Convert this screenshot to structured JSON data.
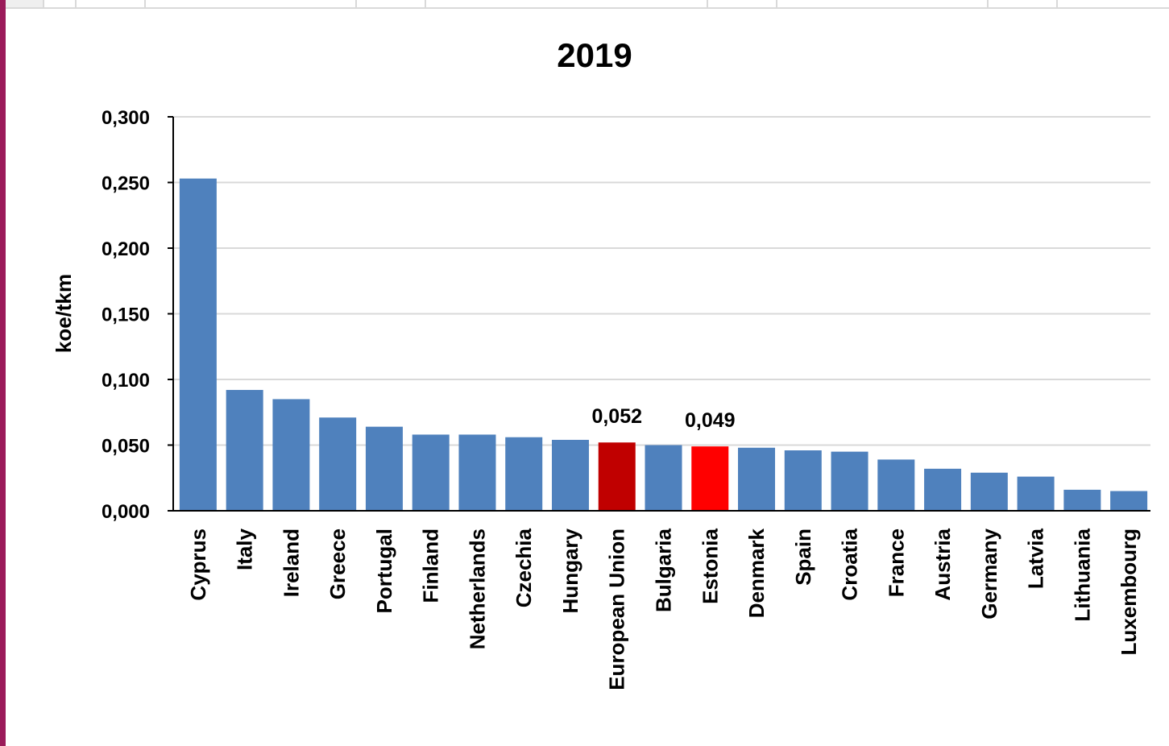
{
  "chart_data": {
    "type": "bar",
    "title": "2019",
    "xlabel": "",
    "ylabel": "koe/tkm",
    "ylim": [
      0,
      0.3
    ],
    "yticks": [
      "0,000",
      "0,050",
      "0,100",
      "0,150",
      "0,200",
      "0,250",
      "0,300"
    ],
    "grid": true,
    "categories": [
      "Cyprus",
      "Italy",
      "Ireland",
      "Greece",
      "Portugal",
      "Finland",
      "Netherlands",
      "Czechia",
      "Hungary",
      "European Union",
      "Bulgaria",
      "Estonia",
      "Denmark",
      "Spain",
      "Croatia",
      "France",
      "Austria",
      "Germany",
      "Latvia",
      "Lithuania",
      "Luxembourg"
    ],
    "values": [
      0.253,
      0.092,
      0.085,
      0.071,
      0.064,
      0.058,
      0.058,
      0.056,
      0.054,
      0.052,
      0.05,
      0.049,
      0.048,
      0.046,
      0.045,
      0.039,
      0.032,
      0.029,
      0.026,
      0.016,
      0.015
    ],
    "data_labels": {
      "European Union": "0,052",
      "Estonia": "0,049"
    },
    "colors": {
      "default": "#4f81bd",
      "European Union": "#c00000",
      "Estonia": "#ff0000"
    }
  }
}
